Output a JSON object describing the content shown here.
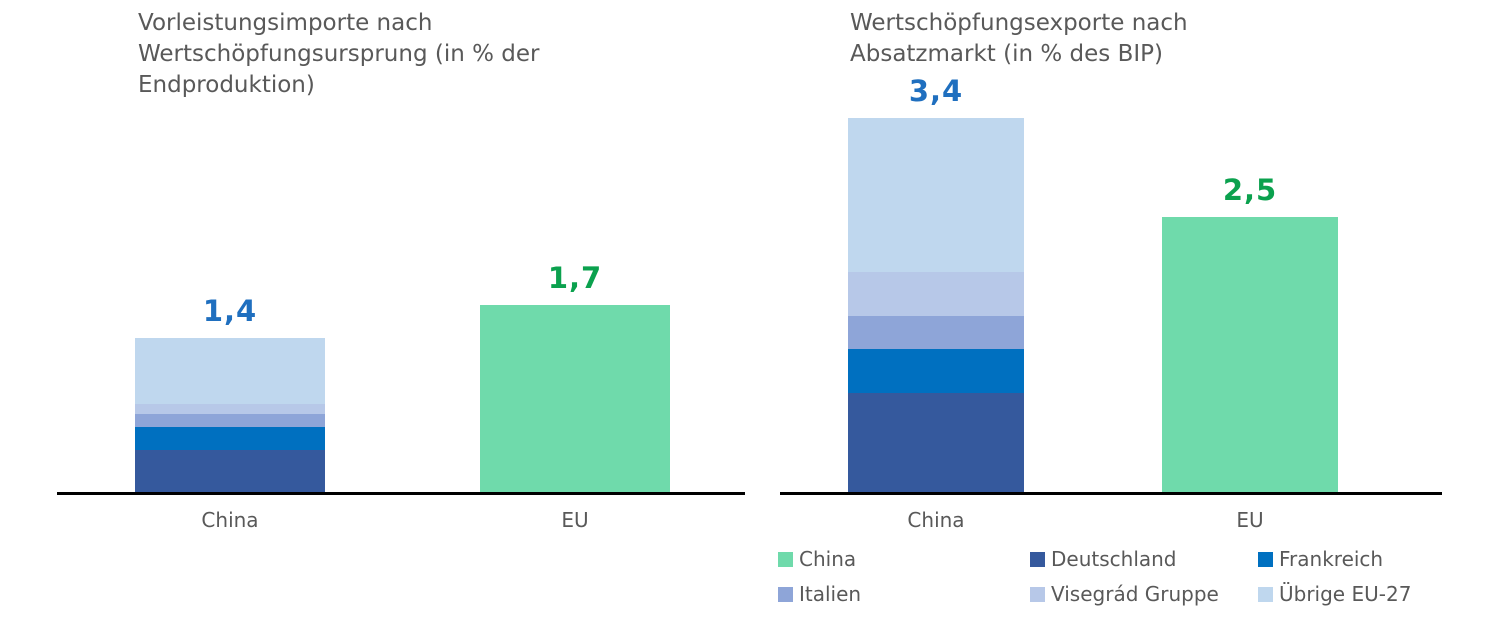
{
  "colors": {
    "China": "#6FDAAB",
    "Deutschland": "#35599D",
    "Frankreich": "#0070C0",
    "Italien": "#8EA5D8",
    "Visegrád Gruppe": "#B7C8E8",
    "Übrige EU-27": "#BFD7EE",
    "text_gray": "#595959",
    "axis_black": "#000000",
    "value_label_blue": "#1F6FBF",
    "value_label_green": "#0BA14E"
  },
  "chart_data": [
    {
      "type": "bar",
      "subtype": "stacked",
      "title": "Vorleistungsimporte nach Wertschöpfungsursprung (in % der Endproduktion)",
      "categories": [
        "China",
        "EU"
      ],
      "ylim": [
        0,
        3.6
      ],
      "grid": false,
      "bars": [
        {
          "category": "China",
          "total": 1.4,
          "value_label": "1,4",
          "label_color": "#1F6FBF",
          "segments": [
            {
              "name": "Deutschland",
              "value": 0.38
            },
            {
              "name": "Frankreich",
              "value": 0.21
            },
            {
              "name": "Italien",
              "value": 0.12
            },
            {
              "name": "Visegrád Gruppe",
              "value": 0.09
            },
            {
              "name": "Übrige EU-27",
              "value": 0.6
            }
          ]
        },
        {
          "category": "EU",
          "total": 1.7,
          "value_label": "1,7",
          "label_color": "#0BA14E",
          "segments": [
            {
              "name": "China",
              "value": 1.7
            }
          ]
        }
      ]
    },
    {
      "type": "bar",
      "subtype": "stacked",
      "title": "Wertschöpfungsexporte nach Absatzmarkt (in % des BIP)",
      "categories": [
        "China",
        "EU"
      ],
      "ylim": [
        0,
        3.6
      ],
      "grid": false,
      "bars": [
        {
          "category": "China",
          "total": 3.4,
          "value_label": "3,4",
          "label_color": "#1F6FBF",
          "segments": [
            {
              "name": "Deutschland",
              "value": 0.9
            },
            {
              "name": "Frankreich",
              "value": 0.4
            },
            {
              "name": "Italien",
              "value": 0.3
            },
            {
              "name": "Visegrád Gruppe",
              "value": 0.4
            },
            {
              "name": "Übrige EU-27",
              "value": 1.4
            }
          ]
        },
        {
          "category": "EU",
          "total": 2.5,
          "value_label": "2,5",
          "label_color": "#0BA14E",
          "segments": [
            {
              "name": "China",
              "value": 2.5
            }
          ]
        }
      ]
    }
  ],
  "legend": {
    "position": "bottom-right",
    "items": [
      {
        "label": "China"
      },
      {
        "label": "Deutschland"
      },
      {
        "label": "Frankreich"
      },
      {
        "label": "Italien"
      },
      {
        "label": "Visegrád Gruppe"
      },
      {
        "label": "Übrige EU-27"
      }
    ]
  }
}
